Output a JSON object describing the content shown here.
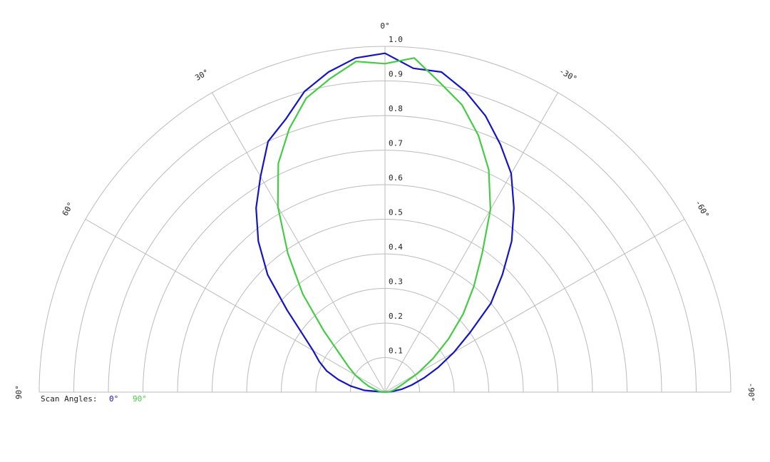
{
  "chart_data": {
    "type": "polar",
    "theta": [
      90,
      85,
      80,
      75,
      70,
      65,
      60,
      55,
      50,
      45,
      40,
      35,
      30,
      25,
      20,
      15,
      10,
      5,
      0,
      -5,
      -10,
      -15,
      -20,
      -25,
      -30,
      -35,
      -40,
      -45,
      -50,
      -55,
      -60,
      -65,
      -70,
      -75,
      -80,
      -85,
      -90
    ],
    "series": [
      {
        "name": "0°",
        "color": "#1414c8",
        "values": [
          0,
          0.06,
          0.1,
          0.14,
          0.18,
          0.21,
          0.24,
          0.29,
          0.37,
          0.48,
          0.57,
          0.65,
          0.72,
          0.8,
          0.84,
          0.9,
          0.94,
          0.97,
          0.98,
          0.94,
          0.94,
          0.9,
          0.85,
          0.79,
          0.73,
          0.65,
          0.57,
          0.48,
          0.4,
          0.3,
          0.23,
          0.17,
          0.12,
          0.08,
          0.05,
          0.02,
          0
        ]
      },
      {
        "name": "90°",
        "color": "#44cc44",
        "values": [
          0,
          0.01,
          0.02,
          0.03,
          0.05,
          0.07,
          0.1,
          0.13,
          0.17,
          0.25,
          0.37,
          0.49,
          0.62,
          0.73,
          0.81,
          0.88,
          0.92,
          0.96,
          0.95,
          0.97,
          0.91,
          0.86,
          0.79,
          0.71,
          0.61,
          0.49,
          0.4,
          0.32,
          0.24,
          0.17,
          0.11,
          0.06,
          0.04,
          0.03,
          0.02,
          0.01,
          0
        ]
      }
    ],
    "legend_title": "Scan Angles:",
    "thetalim": [
      -90,
      90
    ],
    "thetaticks": [
      {
        "value": 90,
        "label": "90°"
      },
      {
        "value": 60,
        "label": "60°"
      },
      {
        "value": 30,
        "label": "30°"
      },
      {
        "value": 0,
        "label": "0°"
      },
      {
        "value": -30,
        "label": "-30°"
      },
      {
        "value": -60,
        "label": "-60°"
      },
      {
        "value": -90,
        "label": "-90°"
      }
    ],
    "rlim": [
      0,
      1
    ],
    "rticks": [
      0.1,
      0.2,
      0.3,
      0.4,
      0.5,
      0.6,
      0.7,
      0.8,
      0.9,
      {
        "value": 1.0,
        "label": "1.0"
      }
    ],
    "grid": true
  }
}
